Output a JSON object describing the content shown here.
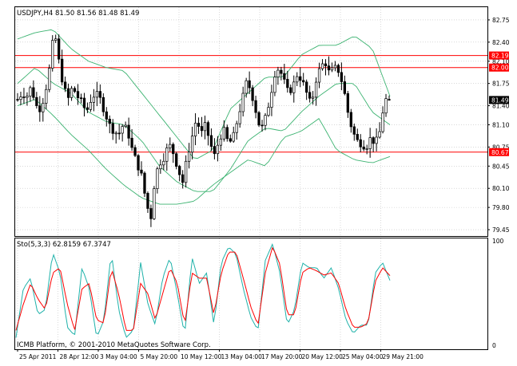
{
  "main_panel": {
    "header": "USDJPY,H4  81.50 81.56 81.48 81.49",
    "price_ticks": [
      "82.75",
      "82.40",
      "82.10",
      "81.75",
      "81.40",
      "81.10",
      "80.75",
      "80.45",
      "80.10",
      "79.80",
      "79.45"
    ],
    "markers": [
      {
        "label": "82.19",
        "color": "#ff0000"
      },
      {
        "label": "82.00",
        "color": "#ff0000"
      },
      {
        "label": "80.67",
        "color": "#ff0000"
      },
      {
        "label": "81.49",
        "color": "#000000"
      }
    ]
  },
  "stoch_panel": {
    "header": "Sto(5,3,3) 62.8159 67.3747",
    "ticks": [
      "100",
      "0"
    ],
    "copyright": "ICMB Platform, © 2001-2010 MetaQuotes Software Corp."
  },
  "time_axis": [
    "25 Apr 2011",
    "28 Apr 12:00",
    "3 May 04:00",
    "5 May 20:00",
    "10 May 12:00",
    "13 May 04:00",
    "17 May 20:00",
    "20 May 12:00",
    "25 May 04:00",
    "29 May 21:00"
  ],
  "colors": {
    "candle": "#000000",
    "bollinger": "#3cb371",
    "level_line": "#ff0000",
    "stoch_main": "#20b2aa",
    "stoch_signal": "#ff0000",
    "grid": "#c0c0c0"
  },
  "chart_data": [
    {
      "type": "candlestick",
      "title": "USDJPY,H4",
      "ohlc_last": {
        "open": 81.5,
        "high": 81.56,
        "low": 81.48,
        "close": 81.49
      },
      "ylim": [
        79.35,
        82.95
      ],
      "horizontal_levels": [
        82.19,
        82.0,
        80.67
      ],
      "close_path": [
        81.5,
        81.6,
        81.55,
        81.7,
        81.4,
        81.35,
        81.6,
        82.0,
        82.6,
        82.1,
        81.7,
        81.5,
        81.7,
        81.55,
        81.45,
        81.3,
        81.5,
        81.6,
        81.5,
        81.3,
        81.1,
        81.0,
        80.95,
        81.1,
        81.0,
        80.7,
        80.5,
        80.3,
        79.9,
        79.6,
        80.3,
        80.5,
        80.6,
        80.8,
        80.65,
        80.4,
        80.2,
        80.6,
        80.9,
        81.2,
        80.95,
        81.1,
        80.8,
        80.6,
        80.9,
        81.0,
        80.8,
        80.9,
        81.2,
        81.5,
        81.8,
        81.6,
        81.3,
        81.0,
        81.2,
        81.5,
        81.9,
        82.0,
        81.8,
        81.6,
        81.7,
        81.9,
        81.8,
        81.6,
        81.4,
        81.8,
        82.0,
        82.1,
        81.9,
        82.0,
        81.95,
        81.7,
        81.3,
        81.0,
        80.85,
        80.8,
        80.75,
        80.9,
        80.8,
        81.0,
        81.5,
        81.49
      ],
      "bollinger_bands": {
        "upper": [
          82.45,
          82.55,
          82.6,
          82.3,
          82.1,
          82.0,
          81.95,
          81.6,
          81.25,
          80.9,
          80.55,
          80.7,
          81.35,
          81.6,
          81.85,
          81.85,
          82.2,
          82.35,
          82.35,
          82.5,
          82.3,
          81.55
        ],
        "middle": [
          81.75,
          82.0,
          81.75,
          81.6,
          81.3,
          81.15,
          81.1,
          80.85,
          80.45,
          80.2,
          80.05,
          80.05,
          80.4,
          80.85,
          81.05,
          81.0,
          81.3,
          81.55,
          81.75,
          81.75,
          81.3,
          81.1
        ],
        "lower": [
          81.4,
          81.5,
          81.25,
          80.95,
          80.7,
          80.4,
          80.15,
          79.95,
          79.85,
          79.85,
          79.9,
          80.15,
          80.35,
          80.55,
          80.45,
          80.9,
          81.0,
          81.2,
          80.7,
          80.55,
          80.5,
          80.6
        ]
      }
    },
    {
      "type": "line",
      "title": "Sto(5,3,3)",
      "ylim": [
        0,
        100
      ],
      "last_values": {
        "main": 62.8159,
        "signal": 67.3747
      },
      "series": [
        {
          "name": "main",
          "values": [
            8,
            55,
            65,
            30,
            35,
            90,
            70,
            18,
            10,
            75,
            55,
            8,
            25,
            90,
            35,
            8,
            15,
            80,
            40,
            20,
            65,
            85,
            50,
            10,
            85,
            60,
            70,
            20,
            80,
            95,
            88,
            55,
            28,
            15,
            82,
            98,
            70,
            20,
            35,
            80,
            75,
            75,
            65,
            75,
            55,
            25,
            12,
            20,
            20,
            70,
            80,
            62.8
          ]
        },
        {
          "name": "signal",
          "values": [
            15,
            40,
            60,
            45,
            35,
            70,
            75,
            40,
            15,
            55,
            60,
            25,
            22,
            75,
            50,
            15,
            15,
            60,
            50,
            25,
            50,
            75,
            60,
            20,
            70,
            65,
            65,
            30,
            70,
            90,
            90,
            65,
            38,
            20,
            70,
            95,
            78,
            30,
            30,
            70,
            75,
            72,
            68,
            70,
            60,
            35,
            18,
            18,
            22,
            62,
            75,
            67.4
          ]
        }
      ]
    }
  ]
}
